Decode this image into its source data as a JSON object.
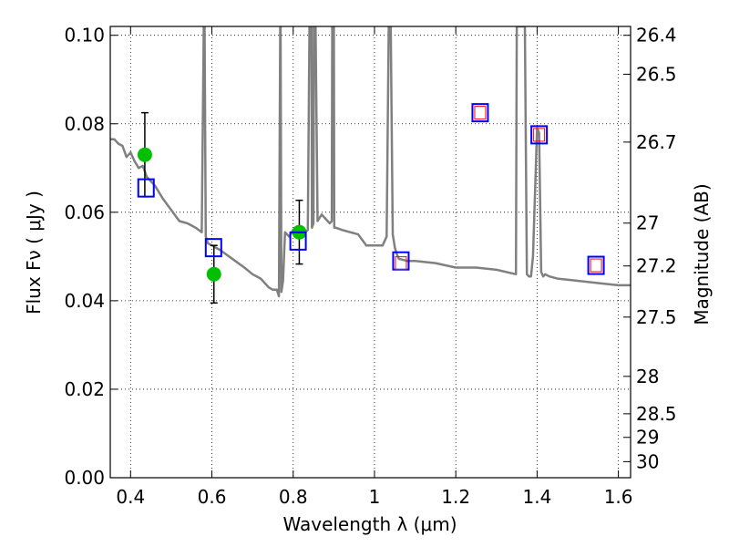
{
  "chart_data": {
    "type": "scatter",
    "xlabel": "Wavelength  λ (μm)",
    "ylabel_left": "Flux  Fν  ( μJy )",
    "ylabel_right": "Magnitude (AB)",
    "xlim": [
      0.35,
      1.63
    ],
    "ylim": [
      0.0,
      0.102
    ],
    "grid": true,
    "x_ticks": [
      0.4,
      0.6,
      0.8,
      1.0,
      1.2,
      1.4,
      1.6
    ],
    "x_tick_labels": [
      "0.4",
      "0.6",
      "0.8",
      "1",
      "1.2",
      "1.4",
      "1.6"
    ],
    "y_ticks": [
      0.0,
      0.02,
      0.04,
      0.06,
      0.08,
      0.1
    ],
    "y_tick_labels": [
      "0.00",
      "0.02",
      "0.04",
      "0.06",
      "0.08",
      "0.10"
    ],
    "mag_ticks": [
      26.4,
      26.5,
      26.7,
      27,
      27.2,
      27.5,
      28,
      28.5,
      29,
      30
    ],
    "mag_tick_labels": [
      "26.4",
      "26.5",
      "26.7",
      "27",
      "27.2",
      "27.5",
      "28",
      "28.5",
      "29",
      "30"
    ],
    "series": [
      {
        "kind": "line",
        "color": "#808080",
        "x": [
          0.35,
          0.36,
          0.37,
          0.38,
          0.39,
          0.4,
          0.41,
          0.42,
          0.43,
          0.44,
          0.45,
          0.46,
          0.47,
          0.48,
          0.5,
          0.52,
          0.54,
          0.56,
          0.575,
          0.58,
          0.582,
          0.585,
          0.59,
          0.62,
          0.65,
          0.68,
          0.7,
          0.72,
          0.74,
          0.75,
          0.76,
          0.765,
          0.768,
          0.769,
          0.771,
          0.775,
          0.78,
          0.79,
          0.8,
          0.82,
          0.83,
          0.836,
          0.84,
          0.845,
          0.846,
          0.85,
          0.851,
          0.855,
          0.86,
          0.87,
          0.88,
          0.89,
          0.895,
          0.896,
          0.9,
          0.901,
          0.905,
          0.92,
          0.94,
          0.96,
          0.98,
          1.0,
          1.02,
          1.03,
          1.035,
          1.04,
          1.045,
          1.05,
          1.055,
          1.06,
          1.08,
          1.1,
          1.15,
          1.2,
          1.25,
          1.3,
          1.348,
          1.35,
          1.36,
          1.37,
          1.375,
          1.38,
          1.385,
          1.39,
          1.4,
          1.405,
          1.41,
          1.415,
          1.42,
          1.43,
          1.45,
          1.5,
          1.55,
          1.6,
          1.63
        ],
        "y": [
          0.0765,
          0.0765,
          0.0755,
          0.075,
          0.0725,
          0.0735,
          0.0715,
          0.07,
          0.0705,
          0.068,
          0.067,
          0.066,
          0.0645,
          0.063,
          0.0605,
          0.058,
          0.0575,
          0.0565,
          0.0555,
          0.102,
          0.102,
          0.0545,
          0.053,
          0.0515,
          0.0495,
          0.0475,
          0.046,
          0.045,
          0.043,
          0.0425,
          0.0425,
          0.041,
          0.102,
          0.102,
          0.042,
          0.0445,
          0.0555,
          0.0545,
          0.056,
          0.0555,
          0.0555,
          0.056,
          0.102,
          0.102,
          0.0565,
          0.0575,
          0.102,
          0.102,
          0.058,
          0.0595,
          0.0585,
          0.0575,
          0.058,
          0.102,
          0.102,
          0.0565,
          0.0565,
          0.056,
          0.0555,
          0.055,
          0.0525,
          0.0525,
          0.0525,
          0.0545,
          0.102,
          0.102,
          0.055,
          0.052,
          0.0505,
          0.0495,
          0.049,
          0.049,
          0.0485,
          0.0475,
          0.0475,
          0.047,
          0.046,
          0.102,
          0.102,
          0.102,
          0.046,
          0.0455,
          0.0455,
          0.05,
          0.079,
          0.078,
          0.0465,
          0.0455,
          0.046,
          0.0455,
          0.045,
          0.0445,
          0.044,
          0.0435,
          0.0435
        ]
      },
      {
        "kind": "points",
        "name": "",
        "marker": "circle",
        "color": "#00c000",
        "x": [
          0.435,
          0.605,
          0.815
        ],
        "y": [
          0.073,
          0.046,
          0.0555
        ],
        "yerr": [
          0.0095,
          0.0065,
          0.0072
        ]
      },
      {
        "kind": "points",
        "name": "",
        "marker": "square",
        "color": "#0000ff",
        "x": [
          0.438,
          0.604,
          0.812,
          1.065,
          1.26,
          1.405,
          1.545
        ],
        "y": [
          0.0655,
          0.052,
          0.0535,
          0.049,
          0.0825,
          0.0775,
          0.048
        ]
      },
      {
        "kind": "points",
        "name": "",
        "marker": "square-small",
        "color": "#ff0000",
        "x": [
          1.065,
          1.26,
          1.405,
          1.545
        ],
        "y": [
          0.0485,
          0.0825,
          0.0775,
          0.048
        ]
      }
    ]
  }
}
